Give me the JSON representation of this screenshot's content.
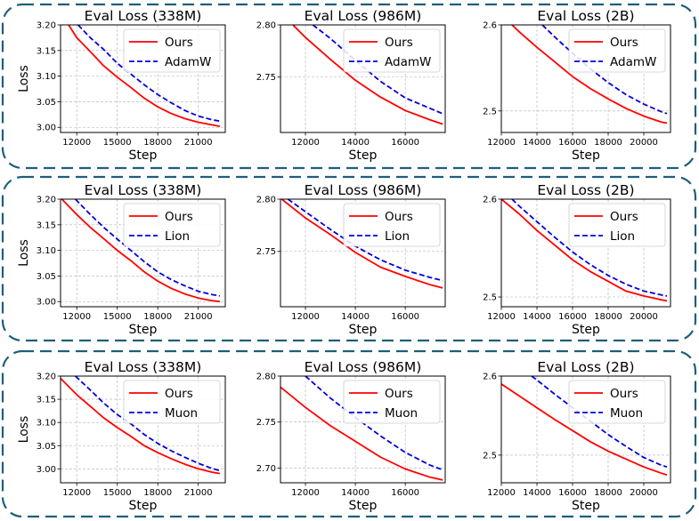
{
  "colors": {
    "frame": "#1f5e7a",
    "ours": "#ff0000",
    "baseline": "#0000dd",
    "grid": "#b0b0b0"
  },
  "chart_data": [
    {
      "type": "line",
      "title": "Eval Loss (338M)",
      "xlabel": "Step",
      "ylabel": "Loss",
      "xlim": [
        10800,
        23000
      ],
      "ylim": [
        2.99,
        3.2
      ],
      "grid": true,
      "legend": "top-right",
      "xticks": [
        12000,
        15000,
        18000,
        21000
      ],
      "xtick_labels": [
        "12000",
        "15000",
        "18000",
        "21000"
      ],
      "yticks": [
        3.0,
        3.05,
        3.1,
        3.15,
        3.2
      ],
      "ytick_labels": [
        "3.00",
        "3.05",
        "3.10",
        "3.15",
        "3.20"
      ],
      "series": [
        {
          "name": "Ours",
          "style": "solid",
          "x": [
            11400,
            12000,
            13000,
            14000,
            15000,
            16000,
            17000,
            18000,
            19000,
            20000,
            21000,
            22000,
            22600
          ],
          "y": [
            3.2,
            3.175,
            3.148,
            3.12,
            3.098,
            3.078,
            3.057,
            3.04,
            3.027,
            3.017,
            3.01,
            3.005,
            3.002
          ]
        },
        {
          "name": "AdamW",
          "style": "dashed",
          "x": [
            12100,
            13000,
            14000,
            15000,
            16000,
            17000,
            18000,
            19000,
            20000,
            21000,
            22000,
            22600
          ],
          "y": [
            3.2,
            3.175,
            3.152,
            3.125,
            3.104,
            3.083,
            3.064,
            3.048,
            3.033,
            3.022,
            3.015,
            3.012
          ]
        }
      ]
    },
    {
      "type": "line",
      "title": "Eval Loss (986M)",
      "xlabel": "Step",
      "ylabel": "",
      "xlim": [
        11000,
        17600
      ],
      "ylim": [
        2.697,
        2.8
      ],
      "grid": true,
      "legend": "top-right",
      "xticks": [
        12000,
        14000,
        16000
      ],
      "xtick_labels": [
        "12000",
        "14000",
        "16000"
      ],
      "yticks": [
        2.75,
        2.8
      ],
      "ytick_labels": [
        "2.75",
        "2.80"
      ],
      "series": [
        {
          "name": "Ours",
          "style": "solid",
          "x": [
            11500,
            12000,
            13000,
            14000,
            15000,
            16000,
            17000,
            17500
          ],
          "y": [
            2.8,
            2.788,
            2.767,
            2.747,
            2.731,
            2.718,
            2.709,
            2.705
          ]
        },
        {
          "name": "AdamW",
          "style": "dashed",
          "x": [
            12300,
            13000,
            14000,
            15000,
            16000,
            17000,
            17500
          ],
          "y": [
            2.8,
            2.787,
            2.766,
            2.746,
            2.73,
            2.72,
            2.715
          ]
        }
      ]
    },
    {
      "type": "line",
      "title": "Eval Loss (2B)",
      "xlabel": "Step",
      "ylabel": "",
      "xlim": [
        12000,
        21500
      ],
      "ylim": [
        2.475,
        2.6
      ],
      "grid": true,
      "legend": "top-right",
      "xticks": [
        12000,
        14000,
        16000,
        18000,
        20000
      ],
      "xtick_labels": [
        "12000",
        "14000",
        "16000",
        "18000",
        "20000"
      ],
      "yticks": [
        2.5,
        2.6
      ],
      "ytick_labels": [
        "2.5",
        "2.6"
      ],
      "series": [
        {
          "name": "Ours",
          "style": "solid",
          "x": [
            12600,
            13000,
            14000,
            15000,
            16000,
            17000,
            18000,
            19000,
            20000,
            21000,
            21300
          ],
          "y": [
            2.6,
            2.592,
            2.574,
            2.557,
            2.54,
            2.526,
            2.514,
            2.503,
            2.494,
            2.487,
            2.486
          ]
        },
        {
          "name": "AdamW",
          "style": "dashed",
          "x": [
            14300,
            15000,
            16000,
            17000,
            18000,
            19000,
            20000,
            21000,
            21300
          ],
          "y": [
            2.6,
            2.586,
            2.567,
            2.549,
            2.533,
            2.519,
            2.508,
            2.499,
            2.497
          ]
        }
      ]
    },
    {
      "type": "line",
      "title": "Eval Loss (338M)",
      "xlabel": "Step",
      "ylabel": "Loss",
      "xlim": [
        10800,
        23000
      ],
      "ylim": [
        2.99,
        3.2
      ],
      "grid": true,
      "legend": "top-right",
      "xticks": [
        12000,
        15000,
        18000,
        21000
      ],
      "xtick_labels": [
        "12000",
        "15000",
        "18000",
        "21000"
      ],
      "yticks": [
        3.0,
        3.05,
        3.1,
        3.15,
        3.2
      ],
      "ytick_labels": [
        "3.00",
        "3.05",
        "3.10",
        "3.15",
        "3.20"
      ],
      "series": [
        {
          "name": "Ours",
          "style": "solid",
          "x": [
            10900,
            12000,
            13000,
            14000,
            15000,
            16000,
            17000,
            18000,
            19000,
            20000,
            21000,
            22000,
            22600
          ],
          "y": [
            3.2,
            3.17,
            3.145,
            3.123,
            3.1,
            3.08,
            3.058,
            3.04,
            3.026,
            3.015,
            3.007,
            3.002,
            3.0
          ]
        },
        {
          "name": "Lion",
          "style": "dashed",
          "x": [
            11900,
            13000,
            14000,
            15000,
            16000,
            17000,
            18000,
            19000,
            20000,
            21000,
            22000,
            22600
          ],
          "y": [
            3.2,
            3.17,
            3.145,
            3.122,
            3.1,
            3.078,
            3.058,
            3.043,
            3.031,
            3.02,
            3.014,
            3.011
          ]
        }
      ]
    },
    {
      "type": "line",
      "title": "Eval Loss (986M)",
      "xlabel": "Step",
      "ylabel": "",
      "xlim": [
        11000,
        17600
      ],
      "ylim": [
        2.697,
        2.8
      ],
      "grid": true,
      "legend": "top-right",
      "xticks": [
        12000,
        14000,
        16000
      ],
      "xtick_labels": [
        "12000",
        "14000",
        "16000"
      ],
      "yticks": [
        2.75,
        2.8
      ],
      "ytick_labels": [
        "2.75",
        "2.80"
      ],
      "series": [
        {
          "name": "Ours",
          "style": "solid",
          "x": [
            11050,
            12000,
            13000,
            14000,
            15000,
            16000,
            17000,
            17500
          ],
          "y": [
            2.8,
            2.782,
            2.766,
            2.749,
            2.735,
            2.726,
            2.718,
            2.715
          ]
        },
        {
          "name": "Lion",
          "style": "dashed",
          "x": [
            11300,
            12000,
            13000,
            14000,
            15000,
            16000,
            17000,
            17500
          ],
          "y": [
            2.8,
            2.788,
            2.771,
            2.755,
            2.742,
            2.732,
            2.725,
            2.722
          ]
        }
      ]
    },
    {
      "type": "line",
      "title": "Eval Loss (2B)",
      "xlabel": "Step",
      "ylabel": "",
      "xlim": [
        12000,
        21500
      ],
      "ylim": [
        2.49,
        2.6
      ],
      "grid": true,
      "legend": "top-right",
      "xticks": [
        12000,
        14000,
        16000,
        18000,
        20000
      ],
      "xtick_labels": [
        "12000",
        "14000",
        "16000",
        "18000",
        "20000"
      ],
      "yticks": [
        2.5,
        2.6
      ],
      "ytick_labels": [
        "2.5",
        "2.6"
      ],
      "series": [
        {
          "name": "Ours",
          "style": "solid",
          "x": [
            12000,
            13000,
            14000,
            15000,
            16000,
            17000,
            18000,
            19000,
            20000,
            21000,
            21300
          ],
          "y": [
            2.6,
            2.585,
            2.568,
            2.553,
            2.538,
            2.526,
            2.516,
            2.506,
            2.501,
            2.497,
            2.496
          ]
        },
        {
          "name": "Lion",
          "style": "dashed",
          "x": [
            12600,
            13000,
            14000,
            15000,
            16000,
            17000,
            18000,
            19000,
            20000,
            21000,
            21300
          ],
          "y": [
            2.6,
            2.593,
            2.577,
            2.561,
            2.546,
            2.533,
            2.522,
            2.513,
            2.506,
            2.502,
            2.501
          ]
        }
      ]
    },
    {
      "type": "line",
      "title": "Eval Loss (338M)",
      "xlabel": "Step",
      "ylabel": "Loss",
      "xlim": [
        10800,
        23000
      ],
      "ylim": [
        2.97,
        3.2
      ],
      "grid": true,
      "legend": "top-right",
      "xticks": [
        12000,
        15000,
        18000,
        21000
      ],
      "xtick_labels": [
        "12000",
        "15000",
        "18000",
        "21000"
      ],
      "yticks": [
        3.0,
        3.05,
        3.1,
        3.15,
        3.2
      ],
      "ytick_labels": [
        "3.00",
        "3.05",
        "3.10",
        "3.15",
        "3.20"
      ],
      "series": [
        {
          "name": "Ours",
          "style": "solid",
          "x": [
            10800,
            12000,
            13000,
            14000,
            15000,
            16000,
            17000,
            18000,
            19000,
            20000,
            21000,
            22000,
            22600
          ],
          "y": [
            3.195,
            3.16,
            3.135,
            3.11,
            3.089,
            3.07,
            3.05,
            3.035,
            3.022,
            3.01,
            3.0,
            2.993,
            2.99
          ]
        },
        {
          "name": "Muon",
          "style": "dashed",
          "x": [
            11900,
            13000,
            14000,
            15000,
            16000,
            17000,
            18000,
            19000,
            20000,
            21000,
            22000,
            22600
          ],
          "y": [
            3.2,
            3.17,
            3.142,
            3.117,
            3.097,
            3.074,
            3.055,
            3.039,
            3.025,
            3.012,
            3.001,
            2.996
          ]
        }
      ]
    },
    {
      "type": "line",
      "title": "Eval Loss (986M)",
      "xlabel": "Step",
      "ylabel": "",
      "xlim": [
        11000,
        17600
      ],
      "ylim": [
        2.684,
        2.8
      ],
      "grid": true,
      "legend": "top-right",
      "xticks": [
        12000,
        14000,
        16000
      ],
      "xtick_labels": [
        "12000",
        "14000",
        "16000"
      ],
      "yticks": [
        2.7,
        2.75,
        2.8
      ],
      "ytick_labels": [
        "2.70",
        "2.75",
        "2.80"
      ],
      "series": [
        {
          "name": "Ours",
          "style": "solid",
          "x": [
            11000,
            12000,
            13000,
            14000,
            15000,
            16000,
            17000,
            17500
          ],
          "y": [
            2.788,
            2.766,
            2.746,
            2.729,
            2.712,
            2.699,
            2.69,
            2.687
          ]
        },
        {
          "name": "Muon",
          "style": "dashed",
          "x": [
            12000,
            13000,
            14000,
            15000,
            16000,
            17000,
            17500
          ],
          "y": [
            2.8,
            2.776,
            2.755,
            2.735,
            2.717,
            2.703,
            2.698
          ]
        }
      ]
    },
    {
      "type": "line",
      "title": "Eval Loss (2B)",
      "xlabel": "Step",
      "ylabel": "",
      "xlim": [
        12000,
        21500
      ],
      "ylim": [
        2.465,
        2.6
      ],
      "grid": true,
      "legend": "top-right",
      "xticks": [
        12000,
        14000,
        16000,
        18000,
        20000
      ],
      "xtick_labels": [
        "12000",
        "14000",
        "16000",
        "18000",
        "20000"
      ],
      "yticks": [
        2.5,
        2.6
      ],
      "ytick_labels": [
        "2.5",
        "2.6"
      ],
      "series": [
        {
          "name": "Ours",
          "style": "solid",
          "x": [
            12000,
            13000,
            14000,
            15000,
            16000,
            17000,
            18000,
            19000,
            20000,
            21000,
            21300
          ],
          "y": [
            2.59,
            2.575,
            2.56,
            2.545,
            2.531,
            2.517,
            2.505,
            2.495,
            2.485,
            2.477,
            2.475
          ]
        },
        {
          "name": "Muon",
          "style": "dashed",
          "x": [
            13700,
            14000,
            15000,
            16000,
            17000,
            18000,
            19000,
            20000,
            21000,
            21300
          ],
          "y": [
            2.6,
            2.595,
            2.577,
            2.56,
            2.543,
            2.526,
            2.511,
            2.497,
            2.487,
            2.485
          ]
        }
      ]
    }
  ]
}
